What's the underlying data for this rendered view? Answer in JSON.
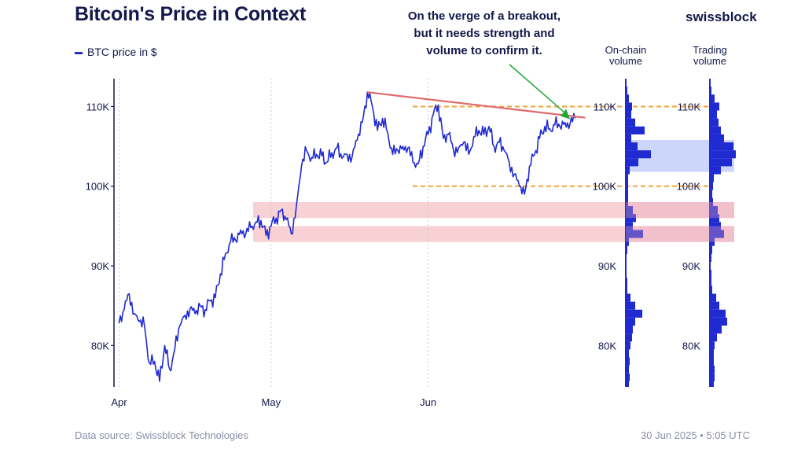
{
  "header": {
    "title": "Bitcoin's Price in Context",
    "brand": "swissblock",
    "legend_label": "BTC price in $"
  },
  "annotation": {
    "lines": [
      "On the verge of a breakout,",
      "but it needs strength and",
      "volume to confirm it."
    ]
  },
  "footer": {
    "source": "Data source: Swissblock Technologies",
    "timestamp": "30 Jun 2025 • 5:05 UTC"
  },
  "colors": {
    "price_line": "#1f2ad1",
    "trendline": "#e06b6b",
    "range_dash": "#f0a23a",
    "support_band": "#f7c9cc",
    "volume_band": "#c7d2fb",
    "axis": "#15184a",
    "arrow": "#22a83a"
  },
  "chart_data": [
    {
      "type": "line",
      "title": "Bitcoin's Price in Context",
      "series": [
        {
          "name": "BTC price in $",
          "x": [
            0,
            1,
            2,
            3,
            4,
            5,
            6,
            7,
            8,
            9,
            10,
            11,
            12,
            13,
            14,
            15,
            16,
            17,
            18,
            19,
            20,
            21,
            22,
            23,
            24,
            25,
            26,
            27,
            28,
            29,
            30,
            31,
            32,
            33,
            34,
            35,
            36,
            37,
            38,
            39,
            40,
            41,
            42,
            43,
            44,
            45,
            46,
            47,
            48,
            49,
            50,
            51,
            52,
            53,
            54,
            55,
            56,
            57,
            58,
            59,
            60,
            61,
            62,
            63,
            64,
            65,
            66,
            67,
            68,
            69,
            70,
            71,
            72,
            73,
            74,
            75,
            76,
            77,
            78,
            79,
            80,
            81,
            82,
            83,
            84,
            85,
            86,
            87,
            88,
            89,
            90
          ],
          "values": [
            82800,
            84500,
            86500,
            84000,
            83000,
            82500,
            77800,
            78000,
            75500,
            80000,
            77000,
            79500,
            82500,
            83800,
            84600,
            84000,
            85000,
            84500,
            85600,
            86000,
            89000,
            91500,
            93000,
            93200,
            94500,
            94000,
            94800,
            95500,
            95700,
            93800,
            95000,
            96000,
            97000,
            95800,
            94000,
            97500,
            102500,
            104500,
            103600,
            104000,
            103800,
            103000,
            104200,
            104800,
            103500,
            104000,
            103700,
            105800,
            108000,
            111800,
            110000,
            107000,
            108500,
            106800,
            104000,
            104500,
            105000,
            104800,
            103000,
            102800,
            105000,
            106500,
            109000,
            110200,
            106000,
            106500,
            104500,
            104800,
            105500,
            104000,
            106200,
            107000,
            106500,
            107500,
            105000,
            105500,
            104500,
            103000,
            101500,
            100000,
            99000,
            102500,
            104000,
            106000,
            107500,
            107200,
            107700,
            107500,
            108000,
            107800,
            108500
          ]
        }
      ],
      "xlabel": "",
      "ylabel": "BTC price in $",
      "x_ticks": [
        {
          "label": "Apr",
          "x": 0
        },
        {
          "label": "May",
          "x": 30
        },
        {
          "label": "Jun",
          "x": 61
        }
      ],
      "y_ticks": [
        {
          "label": "80K",
          "value": 80000
        },
        {
          "label": "90K",
          "value": 90000
        },
        {
          "label": "100K",
          "value": 100000
        },
        {
          "label": "110K",
          "value": 110000
        }
      ],
      "ylim": [
        74800,
        113500
      ],
      "xlim": [
        -1,
        91
      ],
      "trendline": {
        "from": {
          "x": 49,
          "value": 111800
        },
        "to": {
          "x": 92,
          "value": 108600
        }
      },
      "range_lines": [
        100000,
        110000
      ],
      "support_bands": [
        [
          96000,
          98000
        ],
        [
          93000,
          95000
        ]
      ],
      "volume_band": [
        101800,
        105800
      ]
    },
    {
      "type": "bar",
      "orientation": "horizontal",
      "title": "On-chain volume",
      "categories": [
        74000,
        75000,
        76000,
        77000,
        78000,
        79000,
        80000,
        81000,
        82000,
        83000,
        84000,
        85000,
        86000,
        87000,
        88000,
        89000,
        90000,
        91000,
        92000,
        93000,
        94000,
        95000,
        96000,
        97000,
        98000,
        99000,
        100000,
        101000,
        102000,
        103000,
        104000,
        105000,
        106000,
        107000,
        108000,
        109000,
        110000,
        111000,
        112000
      ],
      "values": [
        3,
        4,
        5,
        4,
        5,
        4,
        6,
        8,
        9,
        12,
        21,
        12,
        6,
        2,
        2,
        1,
        1,
        1,
        2,
        4,
        22,
        9,
        13,
        9,
        3,
        3,
        3,
        3,
        5,
        16,
        32,
        15,
        7,
        24,
        12,
        7,
        8,
        4,
        2
      ]
    },
    {
      "type": "bar",
      "orientation": "horizontal",
      "title": "Trading volume",
      "categories": [
        74000,
        75000,
        76000,
        77000,
        78000,
        79000,
        80000,
        81000,
        82000,
        83000,
        84000,
        85000,
        86000,
        87000,
        88000,
        89000,
        90000,
        91000,
        92000,
        93000,
        94000,
        95000,
        96000,
        97000,
        98000,
        99000,
        100000,
        101000,
        102000,
        103000,
        104000,
        105000,
        106000,
        107000,
        108000,
        109000,
        110000,
        111000,
        112000
      ],
      "values": [
        4,
        5,
        6,
        6,
        5,
        5,
        6,
        9,
        15,
        22,
        20,
        12,
        8,
        3,
        2,
        2,
        1,
        2,
        3,
        6,
        18,
        14,
        12,
        10,
        4,
        3,
        4,
        5,
        14,
        28,
        33,
        30,
        18,
        14,
        11,
        9,
        12,
        6,
        2
      ]
    }
  ],
  "volume_axes": {
    "onchain_title": [
      "On-chain",
      "volume"
    ],
    "trading_title": [
      "Trading",
      "volume"
    ],
    "tick_labels": [
      "80K",
      "90K",
      "100K",
      "110K"
    ]
  }
}
